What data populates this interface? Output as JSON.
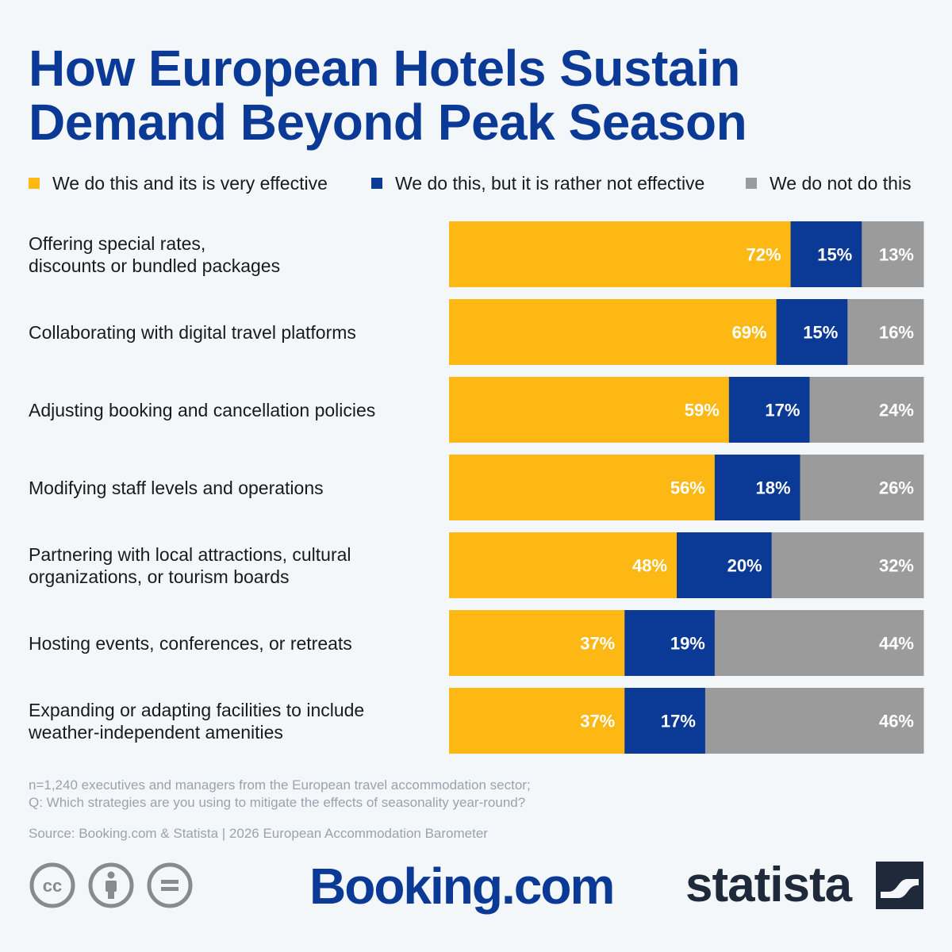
{
  "title_lines": [
    "How European Hotels Sustain",
    "Demand Beyond Peak Season"
  ],
  "legend": [
    {
      "label": "We do this and its is very effective",
      "color": "#fdb813"
    },
    {
      "label": "We do this, but it is rather not effective",
      "color": "#0b3a96"
    },
    {
      "label": "We do not do this",
      "color": "#9b9b9b"
    }
  ],
  "chart_data": {
    "type": "bar",
    "orientation": "horizontal",
    "stacked": true,
    "unit": "%",
    "categories": [
      [
        "Offering special rates,",
        "discounts or bundled packages"
      ],
      [
        "Collaborating with digital travel platforms"
      ],
      [
        "Adjusting booking and cancellation policies"
      ],
      [
        "Modifying staff levels and operations"
      ],
      [
        "Partnering with local attractions, cultural",
        "organizations, or tourism boards"
      ],
      [
        "Hosting events, conferences, or retreats"
      ],
      [
        "Expanding or adapting facilities to include",
        "weather-independent amenities"
      ]
    ],
    "series": [
      {
        "name": "We do this and its is very effective",
        "color": "#fdb813",
        "values": [
          72,
          69,
          59,
          56,
          48,
          37,
          37
        ]
      },
      {
        "name": "We do this, but it is rather not effective",
        "color": "#0b3a96",
        "values": [
          15,
          15,
          17,
          18,
          20,
          19,
          17
        ]
      },
      {
        "name": "We do not do this",
        "color": "#9b9b9b",
        "values": [
          13,
          16,
          24,
          26,
          32,
          44,
          46
        ]
      }
    ],
    "xlim": [
      0,
      100
    ],
    "data_labels": true,
    "legend_position": "top"
  },
  "notes": {
    "lines": [
      "n=1,240 executives and managers from the European travel accommodation sector;",
      "Q: Which strategies are you using to mitigate the effects of seasonality year-round?"
    ],
    "source": "Source: Booking.com & Statista | 2026 European Accommodation Barometer"
  },
  "footer": {
    "license_icons": [
      "cc-icon",
      "attribution-icon",
      "no-derivatives-icon"
    ],
    "brand_booking": "Booking.com",
    "brand_statista": "statista"
  }
}
